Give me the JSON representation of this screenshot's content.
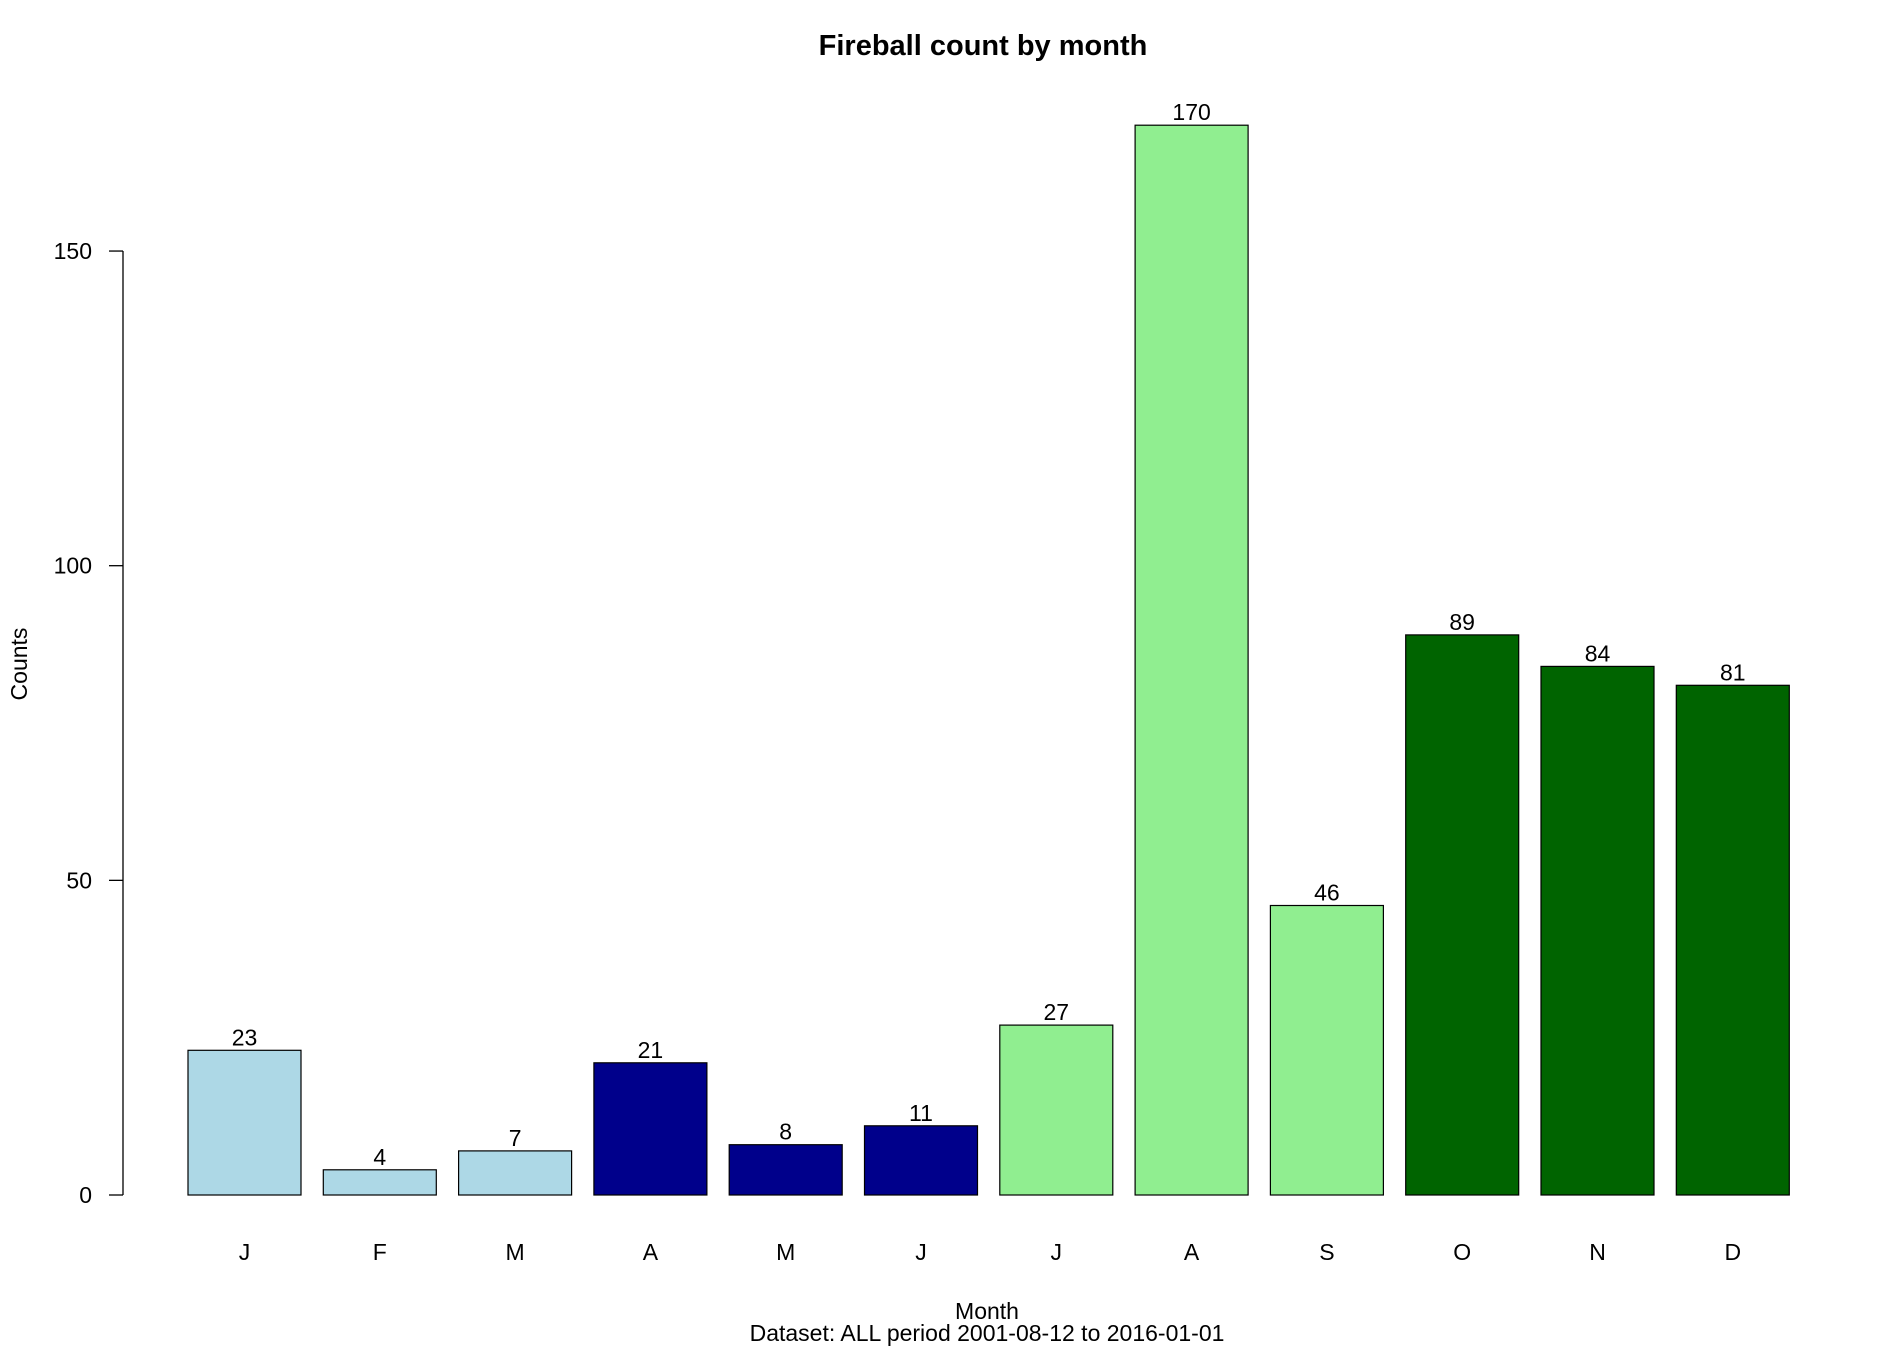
{
  "chart_data": {
    "type": "bar",
    "title": "Fireball count by month",
    "xlabel": "Month",
    "subtitle": "Dataset: ALL period 2001-08-12 to 2016-01-01",
    "ylabel": "Counts",
    "ylim": [
      0,
      150
    ],
    "yticks": [
      0,
      50,
      100,
      150
    ],
    "grid": false,
    "categories": [
      "J",
      "F",
      "M",
      "A",
      "M",
      "J",
      "J",
      "A",
      "S",
      "O",
      "N",
      "D"
    ],
    "values": [
      23,
      4,
      7,
      21,
      8,
      11,
      27,
      170,
      46,
      89,
      84,
      81
    ],
    "colors": [
      "#add8e6",
      "#add8e6",
      "#add8e6",
      "#00008b",
      "#00008b",
      "#00008b",
      "#90ee90",
      "#90ee90",
      "#90ee90",
      "#006400",
      "#006400",
      "#006400"
    ]
  }
}
